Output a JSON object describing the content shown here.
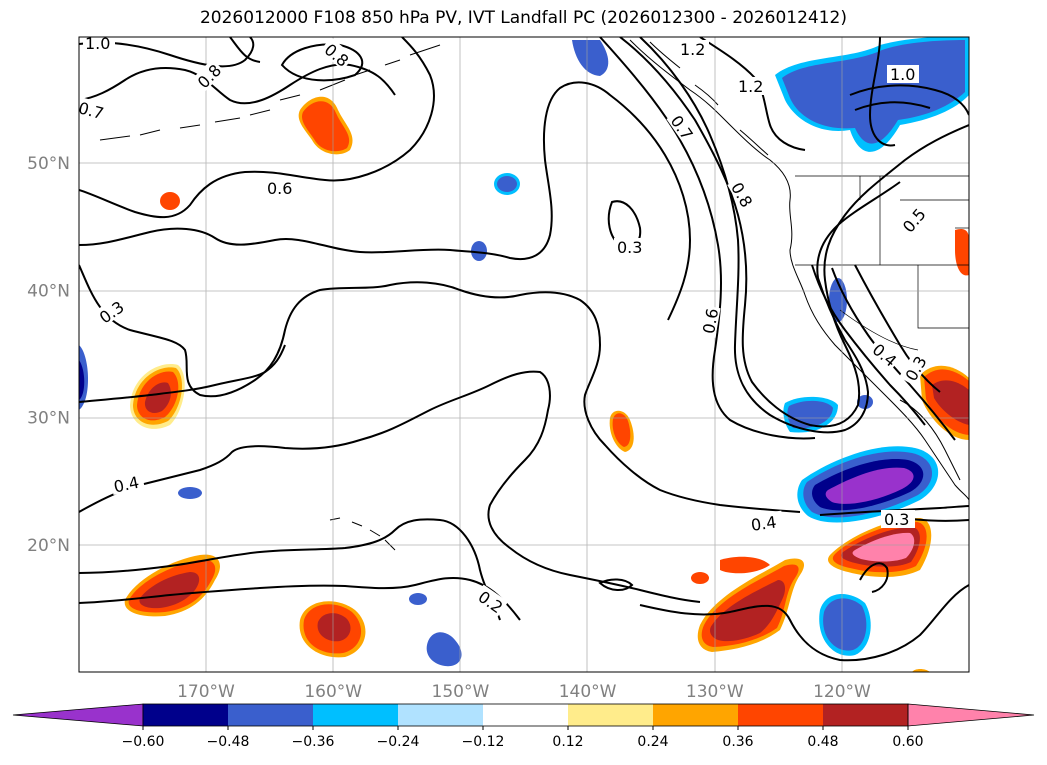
{
  "title": "2026012000 F108 850 hPa PV, IVT Landfall PC (2026012300 - 2026012412)",
  "lat_ticks": [
    {
      "label": "50°N",
      "lat": 50
    },
    {
      "label": "40°N",
      "lat": 40
    },
    {
      "label": "30°N",
      "lat": 30
    },
    {
      "label": "20°N",
      "lat": 20
    }
  ],
  "lon_ticks": [
    {
      "label": "170°W",
      "lon": -170
    },
    {
      "label": "160°W",
      "lon": -160
    },
    {
      "label": "150°W",
      "lon": -150
    },
    {
      "label": "140°W",
      "lon": -140
    },
    {
      "label": "130°W",
      "lon": -130
    },
    {
      "label": "120°W",
      "lon": -120
    }
  ],
  "colorbar": {
    "colors": [
      "#9932cc",
      "#00008b",
      "#3a5fcd",
      "#00bfff",
      "#b0e2ff",
      "#ffffff",
      "#ffec8b",
      "#ffa500",
      "#ff4500",
      "#b22222",
      "#ff82ab"
    ],
    "labels": [
      "−0.60",
      "−0.48",
      "−0.36",
      "−0.24",
      "−0.12",
      "0.12",
      "0.24",
      "0.36",
      "0.48",
      "0.60"
    ]
  },
  "contour_labels": [
    {
      "text": "1.0"
    },
    {
      "text": "0.8"
    },
    {
      "text": "0.8"
    },
    {
      "text": "0.7"
    },
    {
      "text": "1.2"
    },
    {
      "text": "1.2"
    },
    {
      "text": "1.0"
    },
    {
      "text": "0.7"
    },
    {
      "text": "0.6"
    },
    {
      "text": "0.8"
    },
    {
      "text": "0.3"
    },
    {
      "text": "0.5"
    },
    {
      "text": "0.3"
    },
    {
      "text": "0.6"
    },
    {
      "text": "0.4"
    },
    {
      "text": "0.3"
    },
    {
      "text": "0.4"
    },
    {
      "text": "0.4"
    },
    {
      "text": "0.3"
    },
    {
      "text": "0.2"
    }
  ]
}
